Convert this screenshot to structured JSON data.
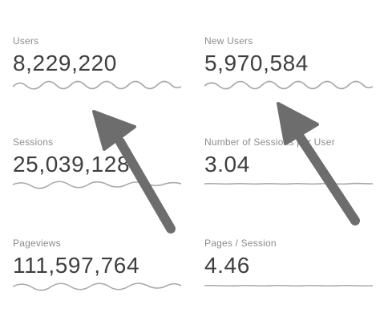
{
  "metrics": [
    {
      "label": "Users",
      "value": "8,229,220"
    },
    {
      "label": "New Users",
      "value": "5,970,584"
    },
    {
      "label": "Sessions",
      "value": "25,039,128"
    },
    {
      "label": "Number of Sessions per User",
      "value": "3.04"
    },
    {
      "label": "Pageviews",
      "value": "111,597,764"
    },
    {
      "label": "Pages / Session",
      "value": "4.46"
    }
  ],
  "colors": {
    "label": "#8c8c8c",
    "value": "#3f3f3f",
    "sparkline": "#a9a9a9",
    "arrow": "#6d6d6d"
  },
  "icons": {
    "annotation_arrows": "arrow-icon"
  }
}
